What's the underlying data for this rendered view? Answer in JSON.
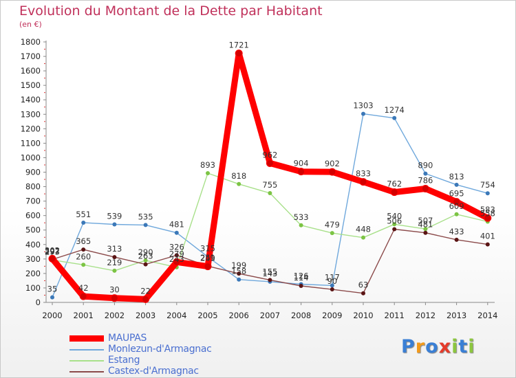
{
  "title": "Evolution du Montant de la Dette par Habitant",
  "subtitle": "(en €)",
  "logo": {
    "text": "Proxiti",
    "letters": [
      {
        "ch": "P",
        "color": "#3a7fd5"
      },
      {
        "ch": "r",
        "color": "#f29a1c"
      },
      {
        "ch": "o",
        "color": "#3a7fd5"
      },
      {
        "ch": "x",
        "color": "#e53b2a"
      },
      {
        "ch": "i",
        "color": "#8cc63f"
      },
      {
        "ch": "t",
        "color": "#3a7fd5"
      },
      {
        "ch": "i",
        "color": "#8cc63f"
      }
    ]
  },
  "chart_data": {
    "type": "line",
    "title": "Evolution du Montant de la Dette par Habitant",
    "ylabel": "(en €)",
    "x": [
      2000,
      2001,
      2002,
      2003,
      2004,
      2005,
      2006,
      2007,
      2008,
      2009,
      2010,
      2011,
      2012,
      2013,
      2014
    ],
    "ylim": [
      0,
      1800
    ],
    "yticks": [
      0,
      100,
      200,
      300,
      400,
      500,
      600,
      700,
      800,
      900,
      1000,
      1100,
      1200,
      1300,
      1400,
      1500,
      1600,
      1700,
      1800
    ],
    "grid": false,
    "legend_position": "bottom-left",
    "series": [
      {
        "name": "MAUPAS",
        "color": "#ff0000",
        "marker": "#d40000",
        "bold": true,
        "values": [
          302,
          42,
          30,
          22,
          279,
          249,
          1721,
          962,
          904,
          902,
          833,
          762,
          786,
          695,
          583
        ]
      },
      {
        "name": "Monlezun-d'Armagnac",
        "color": "#6fa8dc",
        "marker": "#3b78b8",
        "bold": false,
        "values": [
          35,
          551,
          539,
          535,
          481,
          315,
          158,
          143,
          126,
          117,
          1303,
          1274,
          890,
          813,
          754
        ]
      },
      {
        "name": "Estang",
        "color": "#a8e08a",
        "marker": "#7cc444",
        "bold": false,
        "values": [
          293,
          260,
          219,
          290,
          243,
          893,
          818,
          755,
          533,
          479,
          448,
          540,
          507,
          609,
          558
        ]
      },
      {
        "name": "Castex-d'Armagnac",
        "color": "#8b4a4a",
        "marker": "#5a1414",
        "bold": false,
        "values": [
          297,
          365,
          313,
          263,
          326,
          251,
          199,
          155,
          114,
          90,
          63,
          506,
          481,
          433,
          401
        ]
      }
    ]
  }
}
